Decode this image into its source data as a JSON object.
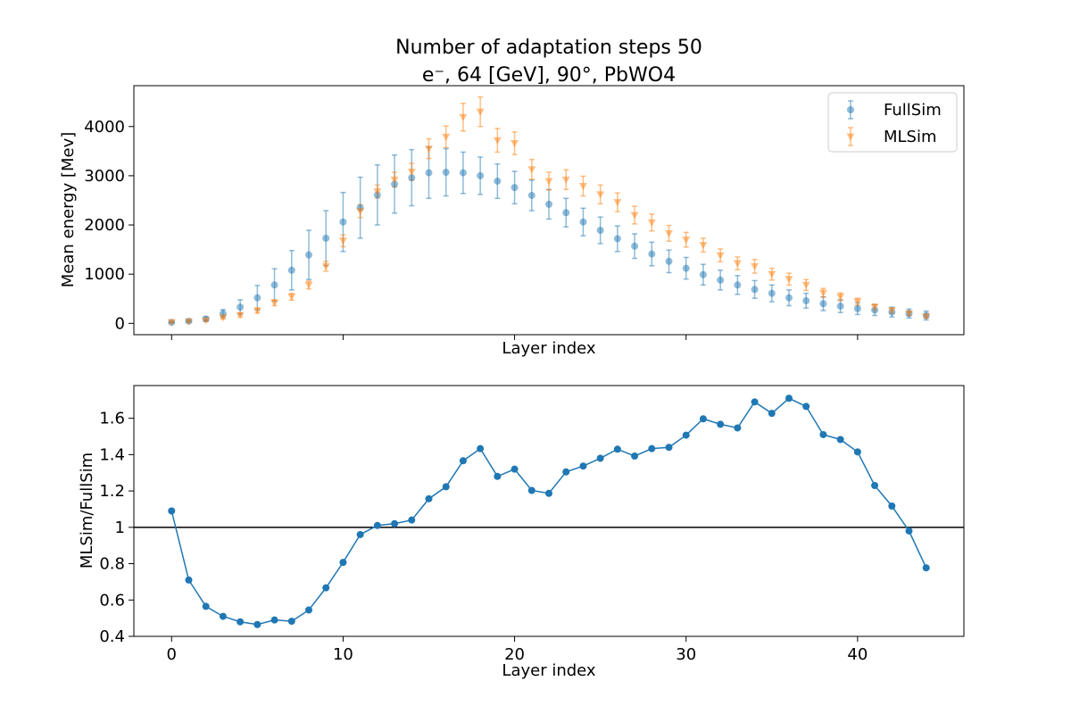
{
  "title": {
    "line1": "Number of adaptation steps 50",
    "line2": "e⁻, 64 [GeV], 90°, PbWO4"
  },
  "colors": {
    "fullsim": "#1f77b4",
    "mlsim": "#ff7f0e",
    "ratio": "#1f77b4",
    "reference_line": "#000000"
  },
  "chart_data": [
    {
      "type": "scatter",
      "xlabel": "Layer index",
      "ylabel": "Mean energy [Mev]",
      "xlim": [
        -2.2,
        46.2
      ],
      "ylim": [
        -230,
        4830
      ],
      "yticks": [
        0,
        1000,
        2000,
        3000,
        4000
      ],
      "legend_position": "top-right",
      "error_bars": true,
      "x": [
        0,
        1,
        2,
        3,
        4,
        5,
        6,
        7,
        8,
        9,
        10,
        11,
        12,
        13,
        14,
        15,
        16,
        17,
        18,
        19,
        20,
        21,
        22,
        23,
        24,
        25,
        26,
        27,
        28,
        29,
        30,
        31,
        32,
        33,
        34,
        35,
        36,
        37,
        38,
        39,
        40,
        41,
        42,
        43,
        44
      ],
      "series": [
        {
          "name": "FullSim",
          "marker": "circle",
          "values": [
            20,
            45,
            90,
            200,
            330,
            520,
            780,
            1080,
            1390,
            1730,
            2060,
            2350,
            2610,
            2830,
            2960,
            3060,
            3070,
            3060,
            3000,
            2890,
            2760,
            2600,
            2420,
            2250,
            2060,
            1890,
            1720,
            1570,
            1410,
            1260,
            1120,
            990,
            880,
            780,
            690,
            610,
            520,
            460,
            400,
            350,
            300,
            270,
            230,
            200,
            160
          ],
          "errors": [
            10,
            20,
            40,
            80,
            150,
            250,
            330,
            400,
            500,
            560,
            600,
            620,
            610,
            590,
            570,
            520,
            480,
            420,
            380,
            350,
            330,
            310,
            300,
            290,
            280,
            270,
            260,
            250,
            240,
            230,
            220,
            210,
            200,
            190,
            180,
            170,
            160,
            150,
            140,
            130,
            120,
            110,
            100,
            90,
            90
          ]
        },
        {
          "name": "MLSim",
          "marker": "triangle-down",
          "values": [
            25,
            40,
            60,
            120,
            170,
            260,
            420,
            540,
            780,
            1160,
            1680,
            2280,
            2680,
            2920,
            3080,
            3550,
            3790,
            4190,
            4300,
            3720,
            3660,
            3130,
            2890,
            2920,
            2790,
            2620,
            2460,
            2200,
            2050,
            1830,
            1700,
            1590,
            1380,
            1220,
            1160,
            1000,
            900,
            780,
            620,
            540,
            440,
            330,
            260,
            200,
            140
          ],
          "errors": [
            10,
            10,
            20,
            30,
            40,
            50,
            60,
            70,
            80,
            100,
            120,
            130,
            130,
            150,
            170,
            200,
            220,
            280,
            300,
            240,
            230,
            200,
            180,
            200,
            200,
            190,
            190,
            180,
            170,
            160,
            150,
            140,
            130,
            130,
            140,
            120,
            120,
            110,
            90,
            80,
            70,
            60,
            50,
            40,
            30
          ]
        }
      ]
    },
    {
      "type": "line",
      "xlabel": "Layer index",
      "ylabel": "MLSim/FullSim",
      "xlim": [
        -2.2,
        46.2
      ],
      "ylim": [
        0.4,
        1.78
      ],
      "xticks": [
        0,
        10,
        20,
        30,
        40
      ],
      "yticks": [
        0.4,
        0.6,
        0.8,
        1.0,
        1.2,
        1.4,
        1.6
      ],
      "reference_line_y": 1.0,
      "x": [
        0,
        1,
        2,
        3,
        4,
        5,
        6,
        7,
        8,
        9,
        10,
        11,
        12,
        13,
        14,
        15,
        16,
        17,
        18,
        19,
        20,
        21,
        22,
        23,
        24,
        25,
        26,
        27,
        28,
        29,
        30,
        31,
        32,
        33,
        34,
        35,
        36,
        37,
        38,
        39,
        40,
        41,
        42,
        43,
        44
      ],
      "series": [
        {
          "values": [
            1.09,
            0.71,
            0.565,
            0.51,
            0.48,
            0.465,
            0.49,
            0.483,
            0.545,
            0.667,
            0.807,
            0.96,
            1.01,
            1.02,
            1.04,
            1.157,
            1.223,
            1.366,
            1.433,
            1.28,
            1.32,
            1.203,
            1.187,
            1.305,
            1.337,
            1.38,
            1.43,
            1.392,
            1.433,
            1.44,
            1.507,
            1.597,
            1.567,
            1.547,
            1.69,
            1.627,
            1.71,
            1.665,
            1.51,
            1.483,
            1.415,
            1.23,
            1.117,
            0.98,
            0.777
          ]
        }
      ]
    }
  ]
}
